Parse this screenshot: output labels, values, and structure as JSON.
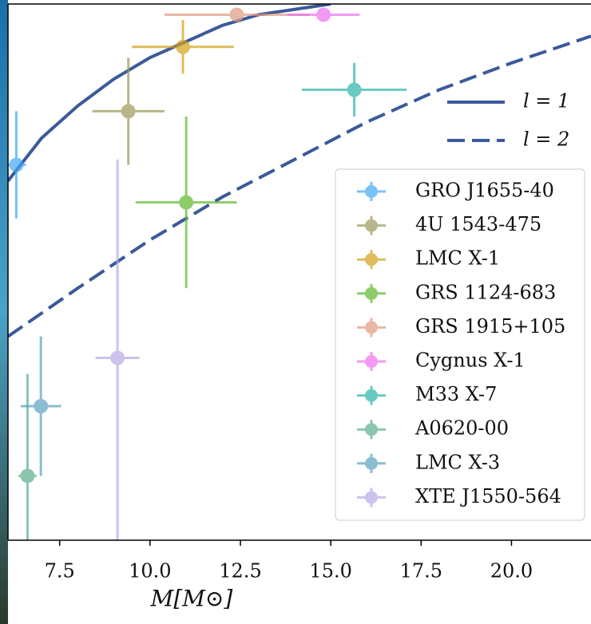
{
  "chart_data": {
    "type": "scatter",
    "xlabel": "M[M⊙]",
    "xlim": [
      6.07,
      22.2
    ],
    "ylim": [
      0,
      1
    ],
    "xticks": [
      7.5,
      {
        "value": 10,
        "label": "10.0"
      },
      12.5,
      {
        "value": 15,
        "label": "15.0"
      },
      17.5,
      {
        "value": 20,
        "label": "20.0"
      }
    ],
    "series": [
      {
        "name": "GRO J1655-40",
        "color": "#3fa9f5",
        "x": [
          6.3
        ],
        "values": [
          0.7
        ],
        "xerr": [
          0.27
        ],
        "yerr": [
          0.1
        ]
      },
      {
        "name": "4U 1543-475",
        "color": "#9a9a5a",
        "x": [
          9.4
        ],
        "values": [
          0.8
        ],
        "xerr": [
          1.0
        ],
        "yerr": [
          0.1
        ]
      },
      {
        "name": "LMC X-1",
        "color": "#d4a017",
        "x": [
          10.91
        ],
        "values": [
          0.92
        ],
        "xerr": [
          1.41
        ],
        "yerr": [
          0.05
        ]
      },
      {
        "name": "GRS 1124-683",
        "color": "#5cb82c",
        "x": [
          11.0
        ],
        "values": [
          0.63
        ],
        "xerr": [
          1.4
        ],
        "yerr": [
          0.16
        ]
      },
      {
        "name": "GRS 1915+105",
        "color": "#e09a80",
        "x": [
          12.4
        ],
        "values": [
          0.98
        ],
        "xerr": [
          2.0
        ],
        "yerr": [
          0.01
        ]
      },
      {
        "name": "Cygnus X-1",
        "color": "#ee6ef0",
        "x": [
          14.8
        ],
        "values": [
          0.98
        ],
        "xerr": [
          1.0
        ],
        "yerr": [
          0.01
        ]
      },
      {
        "name": "M33 X-7",
        "color": "#2cb5a8",
        "x": [
          15.65
        ],
        "values": [
          0.84
        ],
        "xerr": [
          1.45
        ],
        "yerr": [
          0.05
        ]
      },
      {
        "name": "A0620-00",
        "color": "#5aae8a",
        "x": [
          6.61
        ],
        "values": [
          0.12
        ],
        "xerr": [
          0.25
        ],
        "yerr": [
          0.19
        ]
      },
      {
        "name": "LMC X-3",
        "color": "#5aa2c0",
        "x": [
          6.98
        ],
        "values": [
          0.25
        ],
        "xerr": [
          0.56
        ],
        "yerr": [
          0.13
        ]
      },
      {
        "name": "XTE J1550-564",
        "color": "#b9a8e8",
        "x": [
          9.1
        ],
        "values": [
          0.34
        ],
        "xerr": [
          0.61
        ],
        "yerr": [
          0.37
        ]
      }
    ],
    "lines": [
      {
        "name": "l = 1",
        "color": "#3b5a9a",
        "dash": false,
        "x": [
          6.07,
          7,
          8,
          9,
          10,
          11,
          12,
          13,
          14,
          15
        ],
        "values": [
          0.67,
          0.75,
          0.81,
          0.86,
          0.9,
          0.93,
          0.96,
          0.98,
          0.99,
          1.0
        ]
      },
      {
        "name": "l = 2",
        "color": "#3b5a9a",
        "dash": true,
        "x": [
          6.07,
          8,
          10,
          12,
          14,
          16,
          18,
          20,
          22.2
        ],
        "values": [
          0.38,
          0.47,
          0.56,
          0.64,
          0.71,
          0.78,
          0.84,
          0.89,
          0.94
        ]
      }
    ]
  }
}
